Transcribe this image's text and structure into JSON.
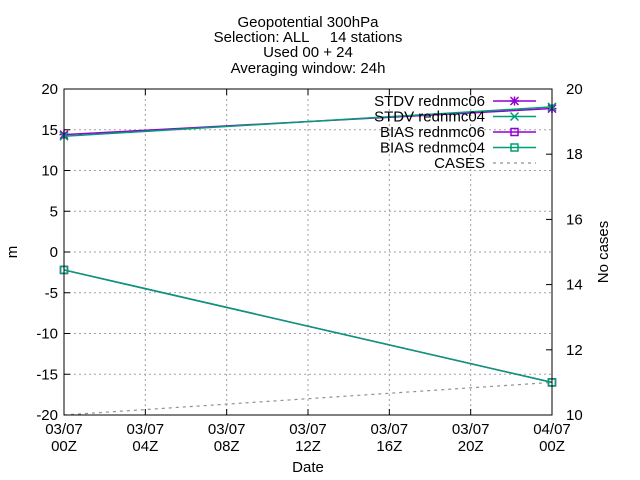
{
  "chart_data": {
    "type": "line",
    "title_lines": [
      "Geopotential 300hPa",
      "Selection: ALL     14 stations",
      "Used 00 + 24",
      "Averaging window: 24h"
    ],
    "xlabel": "Date",
    "ylabel": "m",
    "y2label": "No cases",
    "x_ticks": [
      {
        "value": 0,
        "label_top": "03/07",
        "label_bottom": "00Z"
      },
      {
        "value": 4,
        "label_top": "03/07",
        "label_bottom": "04Z"
      },
      {
        "value": 8,
        "label_top": "03/07",
        "label_bottom": "08Z"
      },
      {
        "value": 12,
        "label_top": "03/07",
        "label_bottom": "12Z"
      },
      {
        "value": 16,
        "label_top": "03/07",
        "label_bottom": "16Z"
      },
      {
        "value": 20,
        "label_top": "03/07",
        "label_bottom": "20Z"
      },
      {
        "value": 24,
        "label_top": "04/07",
        "label_bottom": "00Z"
      }
    ],
    "xlim": [
      0,
      24
    ],
    "ylim": [
      -20,
      20
    ],
    "y_ticks": [
      -20,
      -15,
      -10,
      -5,
      0,
      5,
      10,
      15,
      20
    ],
    "y_tick_labels": [
      "-20",
      "-15",
      "-10",
      "-5",
      "0",
      "5",
      "10",
      "15",
      "20"
    ],
    "y2lim": [
      10,
      20
    ],
    "y2_ticks": [
      10,
      12,
      14,
      16,
      18,
      20
    ],
    "y2_tick_labels": [
      "10",
      "12",
      "14",
      "16",
      "18",
      "20"
    ],
    "grid": true,
    "legend_position": "top-right",
    "series": [
      {
        "name": "STDV rednmc06",
        "x": [
          0,
          24
        ],
        "y": [
          14.4,
          17.6
        ],
        "color": "#9400d3",
        "marker": "star",
        "dash": false,
        "axis": "y1"
      },
      {
        "name": "STDV rednmc04",
        "x": [
          0,
          24
        ],
        "y": [
          14.2,
          17.8
        ],
        "color": "#009e73",
        "marker": "x",
        "dash": false,
        "axis": "y1"
      },
      {
        "name": "BIAS rednmc06",
        "x": [
          0,
          24
        ],
        "y": [
          -2.2,
          -16.0
        ],
        "color": "#9400d3",
        "marker": "square",
        "dash": false,
        "axis": "y1"
      },
      {
        "name": "BIAS rednmc04",
        "x": [
          0,
          24
        ],
        "y": [
          -2.2,
          -16.0
        ],
        "color": "#009e73",
        "marker": "square",
        "dash": false,
        "axis": "y1"
      },
      {
        "name": "CASES",
        "x": [
          0,
          24
        ],
        "y": [
          10,
          11
        ],
        "color": "#909090",
        "marker": "none",
        "dash": true,
        "axis": "y2"
      }
    ]
  }
}
